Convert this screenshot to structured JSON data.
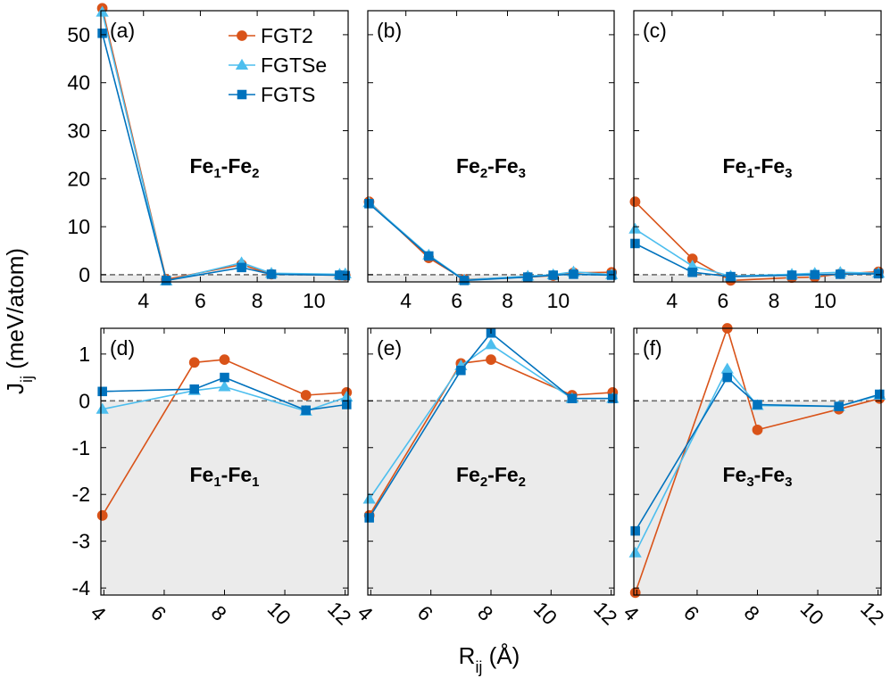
{
  "figure": {
    "ylabel": {
      "main": "J",
      "sub": "ij",
      "rest": " (meV/atom)"
    },
    "xlabel": {
      "main": "R",
      "sub": "ij",
      "rest": " (Å)"
    }
  },
  "legend": [
    {
      "name": "FGT2",
      "color": "#d95319",
      "marker": "circle"
    },
    {
      "name": "FGTSe",
      "color": "#4dbeee",
      "marker": "triangle"
    },
    {
      "name": "FGTS",
      "color": "#0072bd",
      "marker": "square"
    }
  ],
  "chart_data": [
    {
      "type": "line",
      "panel": "(a)",
      "title": {
        "a": "Fe",
        "a_sub": "1",
        "sep": "-",
        "b": "Fe",
        "b_sub": "2"
      },
      "xlim": [
        2.5,
        11.2
      ],
      "ylim": [
        -1.5,
        55
      ],
      "xticks": [
        4,
        6,
        8,
        10
      ],
      "yticks": [
        0,
        10,
        20,
        30,
        40,
        50
      ],
      "series": [
        {
          "name": "FGT2",
          "x": [
            2.55,
            4.8,
            7.45,
            8.5,
            10.9,
            11.1
          ],
          "y": [
            55.5,
            -1.0,
            2.1,
            0.1,
            -0.1,
            -0.2
          ]
        },
        {
          "name": "FGTSe",
          "x": [
            2.55,
            4.8,
            7.45,
            8.5,
            10.9,
            11.1
          ],
          "y": [
            54.7,
            -1.3,
            2.5,
            0.3,
            0.1,
            0.2
          ]
        },
        {
          "name": "FGTS",
          "x": [
            2.55,
            4.8,
            7.45,
            8.5,
            10.9,
            11.1
          ],
          "y": [
            50.3,
            -1.2,
            1.5,
            0.1,
            -0.1,
            -0.2
          ]
        }
      ]
    },
    {
      "type": "line",
      "panel": "(b)",
      "title": {
        "a": "Fe",
        "a_sub": "2",
        "sep": "-",
        "b": "Fe",
        "b_sub": "3"
      },
      "xlim": [
        2.5,
        12.2
      ],
      "ylim": [
        -1.5,
        55
      ],
      "xticks": [
        4,
        6,
        8,
        10
      ],
      "yticks": [
        0,
        10,
        20,
        30,
        40,
        50
      ],
      "series": [
        {
          "name": "FGT2",
          "x": [
            2.55,
            4.9,
            6.3,
            8.8,
            9.8,
            10.6,
            12.1
          ],
          "y": [
            15.2,
            3.5,
            -1.0,
            -0.5,
            -0.2,
            0.4,
            0.5
          ]
        },
        {
          "name": "FGTSe",
          "x": [
            2.55,
            4.9,
            6.3,
            8.8,
            9.8,
            10.6,
            12.1
          ],
          "y": [
            15.0,
            4.1,
            -1.1,
            -0.3,
            0.0,
            0.6,
            0.0
          ]
        },
        {
          "name": "FGTS",
          "x": [
            2.55,
            4.9,
            6.3,
            8.8,
            9.8,
            10.6,
            12.1
          ],
          "y": [
            14.8,
            3.9,
            -1.2,
            -0.5,
            -0.1,
            0.1,
            -0.1
          ]
        }
      ]
    },
    {
      "type": "line",
      "panel": "(c)",
      "title": {
        "a": "Fe",
        "a_sub": "1",
        "sep": "-",
        "b": "Fe",
        "b_sub": "3"
      },
      "xlim": [
        2.5,
        12.2
      ],
      "ylim": [
        -1.5,
        55
      ],
      "xticks": [
        4,
        6,
        8,
        10
      ],
      "yticks": [
        0,
        10,
        20,
        30,
        40,
        50
      ],
      "series": [
        {
          "name": "FGT2",
          "x": [
            2.55,
            4.8,
            6.3,
            8.7,
            9.6,
            10.6,
            12.1
          ],
          "y": [
            15.2,
            3.3,
            -1.2,
            -0.6,
            -0.5,
            0.2,
            0.6
          ]
        },
        {
          "name": "FGTSe",
          "x": [
            2.55,
            4.8,
            6.3,
            8.7,
            9.6,
            10.6,
            12.1
          ],
          "y": [
            9.5,
            1.8,
            -0.3,
            0.1,
            0.3,
            0.5,
            0.3
          ]
        },
        {
          "name": "FGTS",
          "x": [
            2.55,
            4.8,
            6.3,
            8.7,
            9.6,
            10.6,
            12.1
          ],
          "y": [
            6.5,
            0.5,
            -0.4,
            -0.1,
            0.0,
            0.1,
            0.2
          ]
        }
      ]
    },
    {
      "type": "line",
      "panel": "(d)",
      "title": {
        "a": "Fe",
        "a_sub": "1",
        "sep": "-",
        "b": "Fe",
        "b_sub": "1"
      },
      "xlim": [
        3.9,
        12.1
      ],
      "ylim": [
        -4.15,
        1.55
      ],
      "xticks": [
        4,
        6,
        8,
        10,
        12
      ],
      "yticks": [
        -4,
        -3,
        -2,
        -1,
        0,
        1
      ],
      "series": [
        {
          "name": "FGT2",
          "x": [
            3.95,
            7.0,
            8.0,
            10.7,
            12.05
          ],
          "y": [
            -2.45,
            0.82,
            0.88,
            0.12,
            0.18
          ]
        },
        {
          "name": "FGTSe",
          "x": [
            3.95,
            7.0,
            8.0,
            10.7,
            12.05
          ],
          "y": [
            -0.18,
            0.22,
            0.3,
            -0.22,
            0.08
          ]
        },
        {
          "name": "FGTS",
          "x": [
            3.95,
            7.0,
            8.0,
            10.7,
            12.05
          ],
          "y": [
            0.2,
            0.25,
            0.5,
            -0.2,
            -0.08
          ]
        }
      ]
    },
    {
      "type": "line",
      "panel": "(e)",
      "title": {
        "a": "Fe",
        "a_sub": "2",
        "sep": "-",
        "b": "Fe",
        "b_sub": "2"
      },
      "xlim": [
        3.9,
        12.1
      ],
      "ylim": [
        -4.15,
        1.55
      ],
      "xticks": [
        4,
        6,
        8,
        10,
        12
      ],
      "yticks": [
        -4,
        -3,
        -2,
        -1,
        0,
        1
      ],
      "series": [
        {
          "name": "FGT2",
          "x": [
            3.95,
            7.0,
            8.0,
            10.7,
            12.05
          ],
          "y": [
            -2.45,
            0.8,
            0.88,
            0.12,
            0.18
          ]
        },
        {
          "name": "FGTSe",
          "x": [
            3.95,
            7.0,
            8.0,
            10.7,
            12.05
          ],
          "y": [
            -2.1,
            0.75,
            1.2,
            0.05,
            0.05
          ]
        },
        {
          "name": "FGTS",
          "x": [
            3.95,
            7.0,
            8.0,
            10.7,
            12.05
          ],
          "y": [
            -2.5,
            0.65,
            1.45,
            0.05,
            0.05
          ]
        }
      ]
    },
    {
      "type": "line",
      "panel": "(f)",
      "title": {
        "a": "Fe",
        "a_sub": "3",
        "sep": "-",
        "b": "Fe",
        "b_sub": "3"
      },
      "xlim": [
        3.9,
        12.1
      ],
      "ylim": [
        -4.15,
        1.55
      ],
      "xticks": [
        4,
        6,
        8,
        10,
        12
      ],
      "yticks": [
        -4,
        -3,
        -2,
        -1,
        0,
        1
      ],
      "series": [
        {
          "name": "FGT2",
          "x": [
            3.95,
            7.0,
            8.0,
            10.7,
            12.05
          ],
          "y": [
            -4.1,
            1.55,
            -0.62,
            -0.18,
            0.05
          ]
        },
        {
          "name": "FGTSe",
          "x": [
            3.95,
            7.0,
            8.0,
            10.7,
            12.05
          ],
          "y": [
            -3.25,
            0.68,
            -0.1,
            -0.12,
            0.12
          ]
        },
        {
          "name": "FGTS",
          "x": [
            3.95,
            7.0,
            8.0,
            10.7,
            12.05
          ],
          "y": [
            -2.78,
            0.5,
            -0.08,
            -0.12,
            0.14
          ]
        }
      ]
    }
  ]
}
